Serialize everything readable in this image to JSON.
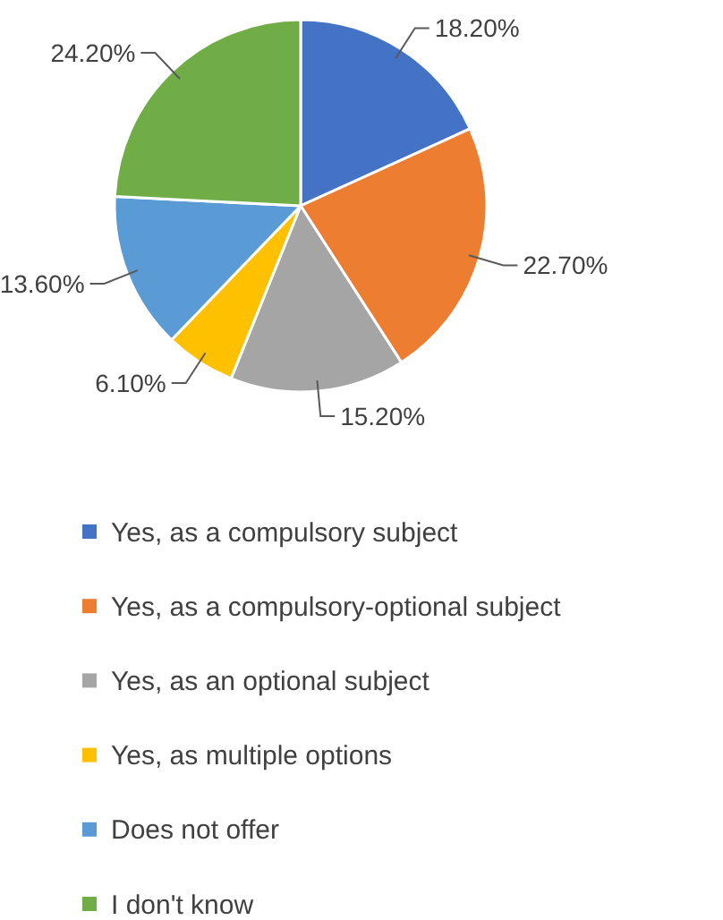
{
  "chart_data": {
    "type": "pie",
    "categories": [
      "Yes, as a compulsory subject",
      "Yes, as a compulsory-optional subject",
      "Yes, as an optional subject",
      "Yes, as multiple options",
      "Does not offer",
      "I don't know"
    ],
    "values": [
      18.2,
      22.7,
      15.2,
      6.1,
      13.6,
      24.2
    ],
    "value_labels": [
      "18.20%",
      "22.70%",
      "15.20%",
      "6.10%",
      "13.60%",
      "24.20%"
    ],
    "colors": [
      "#4472c4",
      "#ed7d31",
      "#a5a5a5",
      "#ffc000",
      "#5b9bd5",
      "#70ad47"
    ],
    "legend": "bottom"
  }
}
